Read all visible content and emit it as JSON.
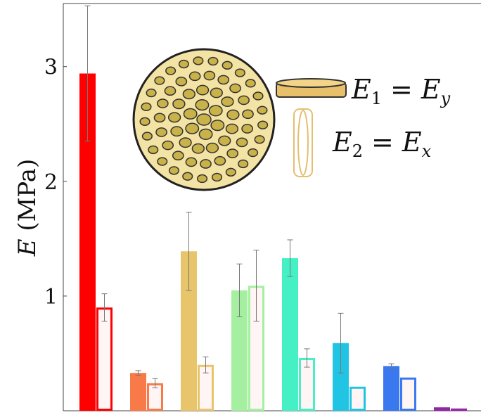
{
  "chart_data": {
    "type": "bar",
    "ylabel": [
      "E",
      "(MPa)"
    ],
    "annotations": [
      {
        "symbol": "E",
        "sub": "1",
        "eq": "=",
        "symbol2": "E",
        "sub2": "y"
      },
      {
        "symbol": "E",
        "sub": "2",
        "eq": "=",
        "symbol2": "E",
        "sub2": "x"
      }
    ],
    "categories": [
      null,
      null,
      null,
      null,
      null,
      null,
      null,
      null
    ],
    "colors": [
      "#ff0000",
      "#f87a48",
      "#e8c46a",
      "#a4f0a0",
      "#44f0c4",
      "#22c4e4",
      "#3a78f0",
      "#9424a8"
    ],
    "series": [
      {
        "style": "filled",
        "values": [
          2.94,
          0.33,
          1.39,
          1.05,
          1.33,
          0.59,
          0.39,
          0.03
        ],
        "errors": [
          0.59,
          0.02,
          0.34,
          0.23,
          0.16,
          0.26,
          0.02,
          0
        ]
      },
      {
        "style": "open",
        "values": [
          0.9,
          0.24,
          0.4,
          1.09,
          0.46,
          0.21,
          0.29,
          0.02
        ],
        "errors": [
          0.12,
          0.04,
          0.07,
          0.31,
          0.08,
          0,
          0,
          0
        ]
      }
    ],
    "ylim": [
      0,
      3.55
    ],
    "yticks": [
      1,
      2,
      3
    ]
  }
}
